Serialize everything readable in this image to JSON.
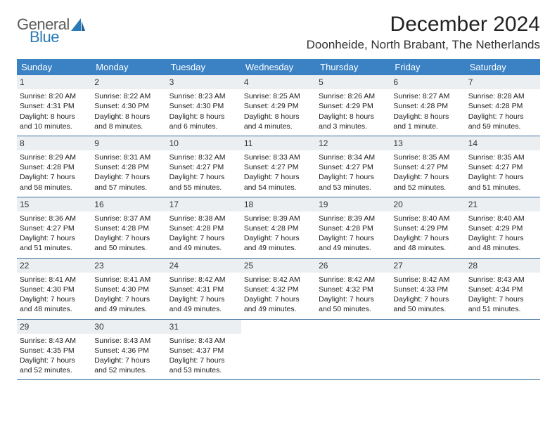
{
  "logo": {
    "general": "General",
    "blue": "Blue"
  },
  "header": {
    "month_title": "December 2024",
    "location": "Doonheide, North Brabant, The Netherlands"
  },
  "colors": {
    "weekday_bg": "#3b82c4",
    "weekday_fg": "#ffffff",
    "daynum_bg": "#eceff1",
    "row_border": "#3b6fa0",
    "logo_gray": "#5a5a5a",
    "logo_blue": "#2a7ab8"
  },
  "weekdays": [
    "Sunday",
    "Monday",
    "Tuesday",
    "Wednesday",
    "Thursday",
    "Friday",
    "Saturday"
  ],
  "labels": {
    "sunrise": "Sunrise:",
    "sunset": "Sunset:",
    "daylight": "Daylight:"
  },
  "weeks": [
    [
      {
        "n": "1",
        "sr": "8:20 AM",
        "ss": "4:31 PM",
        "dl": "8 hours and 10 minutes."
      },
      {
        "n": "2",
        "sr": "8:22 AM",
        "ss": "4:30 PM",
        "dl": "8 hours and 8 minutes."
      },
      {
        "n": "3",
        "sr": "8:23 AM",
        "ss": "4:30 PM",
        "dl": "8 hours and 6 minutes."
      },
      {
        "n": "4",
        "sr": "8:25 AM",
        "ss": "4:29 PM",
        "dl": "8 hours and 4 minutes."
      },
      {
        "n": "5",
        "sr": "8:26 AM",
        "ss": "4:29 PM",
        "dl": "8 hours and 3 minutes."
      },
      {
        "n": "6",
        "sr": "8:27 AM",
        "ss": "4:28 PM",
        "dl": "8 hours and 1 minute."
      },
      {
        "n": "7",
        "sr": "8:28 AM",
        "ss": "4:28 PM",
        "dl": "7 hours and 59 minutes."
      }
    ],
    [
      {
        "n": "8",
        "sr": "8:29 AM",
        "ss": "4:28 PM",
        "dl": "7 hours and 58 minutes."
      },
      {
        "n": "9",
        "sr": "8:31 AM",
        "ss": "4:28 PM",
        "dl": "7 hours and 57 minutes."
      },
      {
        "n": "10",
        "sr": "8:32 AM",
        "ss": "4:27 PM",
        "dl": "7 hours and 55 minutes."
      },
      {
        "n": "11",
        "sr": "8:33 AM",
        "ss": "4:27 PM",
        "dl": "7 hours and 54 minutes."
      },
      {
        "n": "12",
        "sr": "8:34 AM",
        "ss": "4:27 PM",
        "dl": "7 hours and 53 minutes."
      },
      {
        "n": "13",
        "sr": "8:35 AM",
        "ss": "4:27 PM",
        "dl": "7 hours and 52 minutes."
      },
      {
        "n": "14",
        "sr": "8:35 AM",
        "ss": "4:27 PM",
        "dl": "7 hours and 51 minutes."
      }
    ],
    [
      {
        "n": "15",
        "sr": "8:36 AM",
        "ss": "4:27 PM",
        "dl": "7 hours and 51 minutes."
      },
      {
        "n": "16",
        "sr": "8:37 AM",
        "ss": "4:28 PM",
        "dl": "7 hours and 50 minutes."
      },
      {
        "n": "17",
        "sr": "8:38 AM",
        "ss": "4:28 PM",
        "dl": "7 hours and 49 minutes."
      },
      {
        "n": "18",
        "sr": "8:39 AM",
        "ss": "4:28 PM",
        "dl": "7 hours and 49 minutes."
      },
      {
        "n": "19",
        "sr": "8:39 AM",
        "ss": "4:28 PM",
        "dl": "7 hours and 49 minutes."
      },
      {
        "n": "20",
        "sr": "8:40 AM",
        "ss": "4:29 PM",
        "dl": "7 hours and 48 minutes."
      },
      {
        "n": "21",
        "sr": "8:40 AM",
        "ss": "4:29 PM",
        "dl": "7 hours and 48 minutes."
      }
    ],
    [
      {
        "n": "22",
        "sr": "8:41 AM",
        "ss": "4:30 PM",
        "dl": "7 hours and 48 minutes."
      },
      {
        "n": "23",
        "sr": "8:41 AM",
        "ss": "4:30 PM",
        "dl": "7 hours and 49 minutes."
      },
      {
        "n": "24",
        "sr": "8:42 AM",
        "ss": "4:31 PM",
        "dl": "7 hours and 49 minutes."
      },
      {
        "n": "25",
        "sr": "8:42 AM",
        "ss": "4:32 PM",
        "dl": "7 hours and 49 minutes."
      },
      {
        "n": "26",
        "sr": "8:42 AM",
        "ss": "4:32 PM",
        "dl": "7 hours and 50 minutes."
      },
      {
        "n": "27",
        "sr": "8:42 AM",
        "ss": "4:33 PM",
        "dl": "7 hours and 50 minutes."
      },
      {
        "n": "28",
        "sr": "8:43 AM",
        "ss": "4:34 PM",
        "dl": "7 hours and 51 minutes."
      }
    ],
    [
      {
        "n": "29",
        "sr": "8:43 AM",
        "ss": "4:35 PM",
        "dl": "7 hours and 52 minutes."
      },
      {
        "n": "30",
        "sr": "8:43 AM",
        "ss": "4:36 PM",
        "dl": "7 hours and 52 minutes."
      },
      {
        "n": "31",
        "sr": "8:43 AM",
        "ss": "4:37 PM",
        "dl": "7 hours and 53 minutes."
      },
      {
        "empty": true
      },
      {
        "empty": true
      },
      {
        "empty": true
      },
      {
        "empty": true
      }
    ]
  ]
}
